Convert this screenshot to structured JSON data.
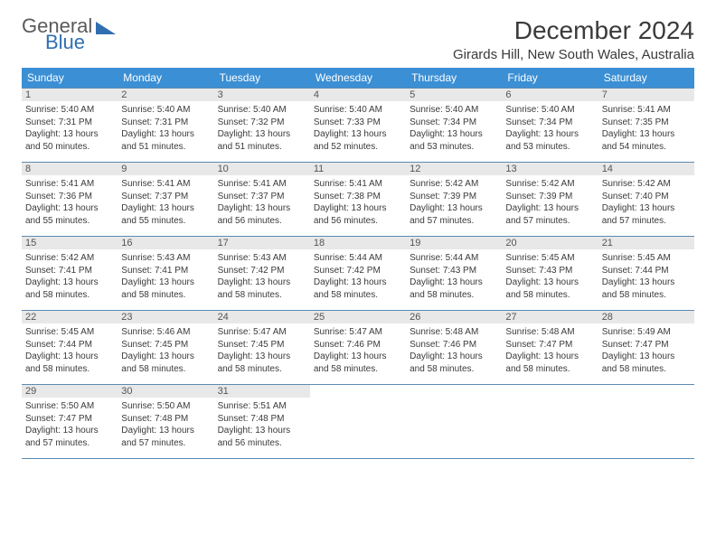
{
  "logo": {
    "text_top": "General",
    "text_bottom": "Blue",
    "top_color": "#5a5a5a",
    "bottom_color": "#2f6fb0",
    "triangle_color": "#2f6fb0"
  },
  "header": {
    "title": "December 2024",
    "location": "Girards Hill, New South Wales, Australia",
    "title_fontsize": 28,
    "location_fontsize": 15,
    "title_color": "#3a3a3a"
  },
  "calendar": {
    "header_bg": "#3b8fd4",
    "header_text_color": "#ffffff",
    "border_color": "#5b8bb5",
    "daynum_bg": "#e8e8e8",
    "days": [
      "Sunday",
      "Monday",
      "Tuesday",
      "Wednesday",
      "Thursday",
      "Friday",
      "Saturday"
    ],
    "weeks": [
      [
        {
          "num": "1",
          "sunrise": "5:40 AM",
          "sunset": "7:31 PM",
          "daylight": "13 hours and 50 minutes."
        },
        {
          "num": "2",
          "sunrise": "5:40 AM",
          "sunset": "7:31 PM",
          "daylight": "13 hours and 51 minutes."
        },
        {
          "num": "3",
          "sunrise": "5:40 AM",
          "sunset": "7:32 PM",
          "daylight": "13 hours and 51 minutes."
        },
        {
          "num": "4",
          "sunrise": "5:40 AM",
          "sunset": "7:33 PM",
          "daylight": "13 hours and 52 minutes."
        },
        {
          "num": "5",
          "sunrise": "5:40 AM",
          "sunset": "7:34 PM",
          "daylight": "13 hours and 53 minutes."
        },
        {
          "num": "6",
          "sunrise": "5:40 AM",
          "sunset": "7:34 PM",
          "daylight": "13 hours and 53 minutes."
        },
        {
          "num": "7",
          "sunrise": "5:41 AM",
          "sunset": "7:35 PM",
          "daylight": "13 hours and 54 minutes."
        }
      ],
      [
        {
          "num": "8",
          "sunrise": "5:41 AM",
          "sunset": "7:36 PM",
          "daylight": "13 hours and 55 minutes."
        },
        {
          "num": "9",
          "sunrise": "5:41 AM",
          "sunset": "7:37 PM",
          "daylight": "13 hours and 55 minutes."
        },
        {
          "num": "10",
          "sunrise": "5:41 AM",
          "sunset": "7:37 PM",
          "daylight": "13 hours and 56 minutes."
        },
        {
          "num": "11",
          "sunrise": "5:41 AM",
          "sunset": "7:38 PM",
          "daylight": "13 hours and 56 minutes."
        },
        {
          "num": "12",
          "sunrise": "5:42 AM",
          "sunset": "7:39 PM",
          "daylight": "13 hours and 57 minutes."
        },
        {
          "num": "13",
          "sunrise": "5:42 AM",
          "sunset": "7:39 PM",
          "daylight": "13 hours and 57 minutes."
        },
        {
          "num": "14",
          "sunrise": "5:42 AM",
          "sunset": "7:40 PM",
          "daylight": "13 hours and 57 minutes."
        }
      ],
      [
        {
          "num": "15",
          "sunrise": "5:42 AM",
          "sunset": "7:41 PM",
          "daylight": "13 hours and 58 minutes."
        },
        {
          "num": "16",
          "sunrise": "5:43 AM",
          "sunset": "7:41 PM",
          "daylight": "13 hours and 58 minutes."
        },
        {
          "num": "17",
          "sunrise": "5:43 AM",
          "sunset": "7:42 PM",
          "daylight": "13 hours and 58 minutes."
        },
        {
          "num": "18",
          "sunrise": "5:44 AM",
          "sunset": "7:42 PM",
          "daylight": "13 hours and 58 minutes."
        },
        {
          "num": "19",
          "sunrise": "5:44 AM",
          "sunset": "7:43 PM",
          "daylight": "13 hours and 58 minutes."
        },
        {
          "num": "20",
          "sunrise": "5:45 AM",
          "sunset": "7:43 PM",
          "daylight": "13 hours and 58 minutes."
        },
        {
          "num": "21",
          "sunrise": "5:45 AM",
          "sunset": "7:44 PM",
          "daylight": "13 hours and 58 minutes."
        }
      ],
      [
        {
          "num": "22",
          "sunrise": "5:45 AM",
          "sunset": "7:44 PM",
          "daylight": "13 hours and 58 minutes."
        },
        {
          "num": "23",
          "sunrise": "5:46 AM",
          "sunset": "7:45 PM",
          "daylight": "13 hours and 58 minutes."
        },
        {
          "num": "24",
          "sunrise": "5:47 AM",
          "sunset": "7:45 PM",
          "daylight": "13 hours and 58 minutes."
        },
        {
          "num": "25",
          "sunrise": "5:47 AM",
          "sunset": "7:46 PM",
          "daylight": "13 hours and 58 minutes."
        },
        {
          "num": "26",
          "sunrise": "5:48 AM",
          "sunset": "7:46 PM",
          "daylight": "13 hours and 58 minutes."
        },
        {
          "num": "27",
          "sunrise": "5:48 AM",
          "sunset": "7:47 PM",
          "daylight": "13 hours and 58 minutes."
        },
        {
          "num": "28",
          "sunrise": "5:49 AM",
          "sunset": "7:47 PM",
          "daylight": "13 hours and 58 minutes."
        }
      ],
      [
        {
          "num": "29",
          "sunrise": "5:50 AM",
          "sunset": "7:47 PM",
          "daylight": "13 hours and 57 minutes."
        },
        {
          "num": "30",
          "sunrise": "5:50 AM",
          "sunset": "7:48 PM",
          "daylight": "13 hours and 57 minutes."
        },
        {
          "num": "31",
          "sunrise": "5:51 AM",
          "sunset": "7:48 PM",
          "daylight": "13 hours and 56 minutes."
        },
        null,
        null,
        null,
        null
      ]
    ],
    "labels": {
      "sunrise_prefix": "Sunrise: ",
      "sunset_prefix": "Sunset: ",
      "daylight_prefix": "Daylight: "
    }
  }
}
